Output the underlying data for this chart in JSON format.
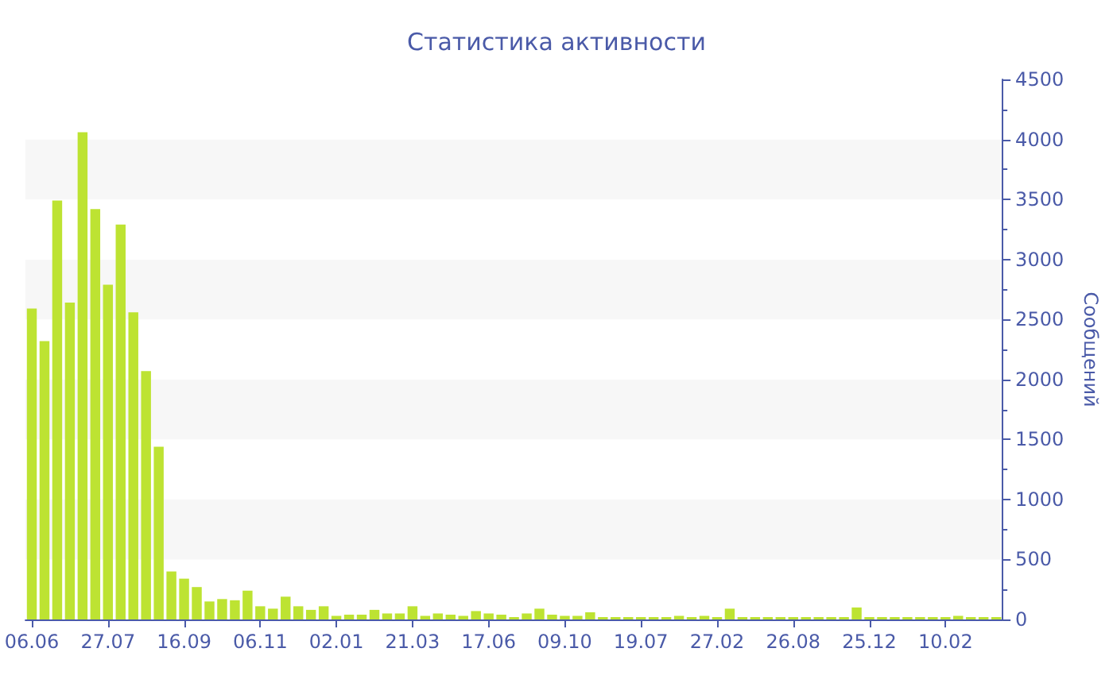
{
  "chart_data": {
    "type": "bar",
    "title": "Статистика активности",
    "ylabel": "Сообщений",
    "categories": [
      "06.06",
      null,
      null,
      null,
      null,
      null,
      "27.07",
      null,
      null,
      null,
      null,
      null,
      "16.09",
      null,
      null,
      null,
      null,
      null,
      "06.11",
      null,
      null,
      null,
      null,
      null,
      "02.01",
      null,
      null,
      null,
      null,
      null,
      "21.03",
      null,
      null,
      null,
      null,
      null,
      "17.06",
      null,
      null,
      null,
      null,
      null,
      "09.10",
      null,
      null,
      null,
      null,
      null,
      "19.07",
      null,
      null,
      null,
      null,
      null,
      "27.02",
      null,
      null,
      null,
      null,
      null,
      "26.08",
      null,
      null,
      null,
      null,
      null,
      "25.12",
      null,
      null,
      null,
      null,
      null,
      "10.02",
      null,
      null,
      null,
      null
    ],
    "values": [
      2590,
      2320,
      3490,
      2640,
      4060,
      3420,
      2790,
      3290,
      2560,
      2070,
      1440,
      400,
      340,
      270,
      150,
      170,
      160,
      240,
      110,
      90,
      190,
      110,
      80,
      110,
      30,
      40,
      40,
      80,
      50,
      50,
      110,
      30,
      50,
      40,
      30,
      70,
      50,
      40,
      20,
      50,
      90,
      40,
      30,
      30,
      60,
      20,
      20,
      20,
      20,
      20,
      20,
      30,
      20,
      30,
      20,
      90,
      20,
      20,
      20,
      20,
      20,
      20,
      20,
      20,
      20,
      100,
      20,
      20,
      20,
      20,
      20,
      20,
      20,
      30,
      20,
      20,
      20
    ],
    "color": "#bde332",
    "ylim": [
      0,
      4500
    ],
    "yticks": [
      0,
      500,
      1000,
      1500,
      2000,
      2500,
      3000,
      3500,
      4000,
      4500
    ]
  }
}
